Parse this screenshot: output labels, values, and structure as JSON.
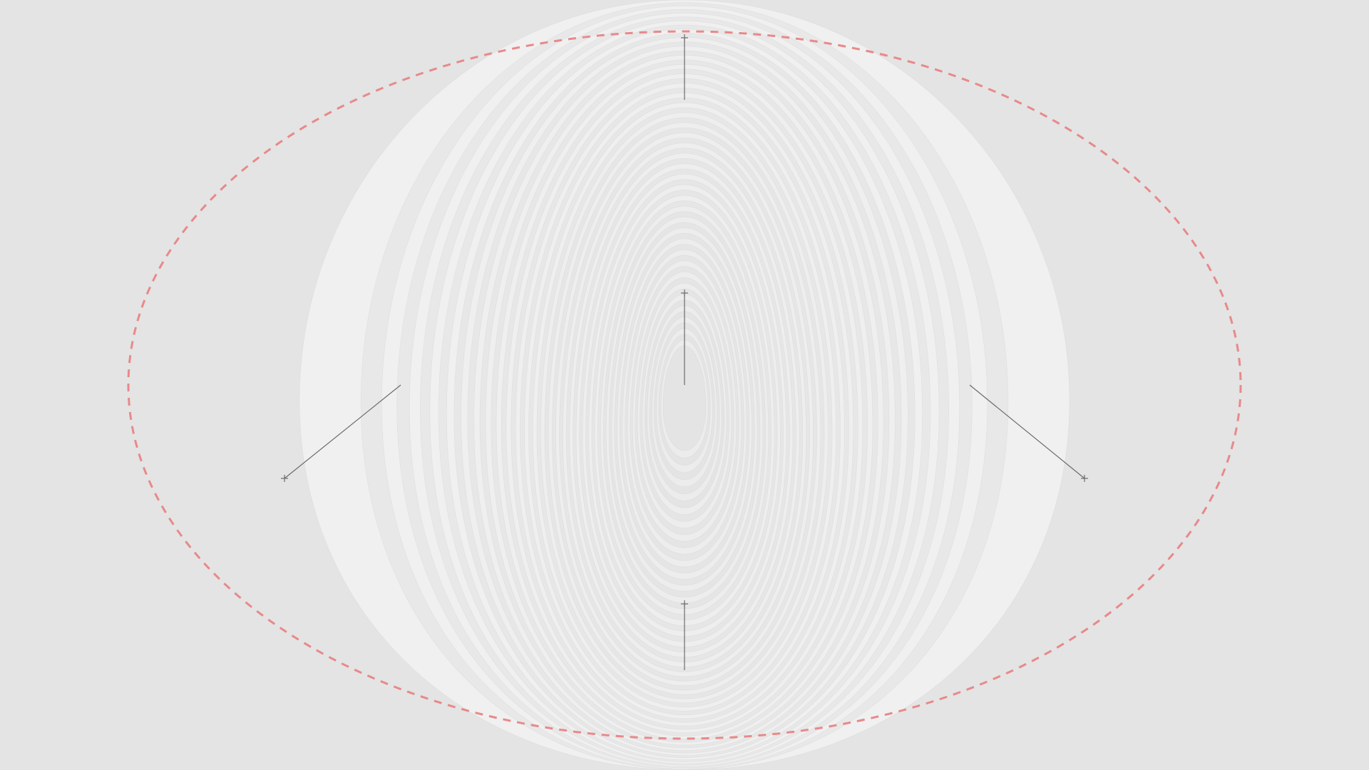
{
  "colors": {
    "background": "#e4e4e4",
    "ring_light": "#f0f0f0",
    "ring_dark": "#e2e2e2",
    "guide_ellipse": "#e8898a",
    "handle_line": "#6b6b6b"
  },
  "icons": {
    "handle_marker": "crosshair-plus-icon"
  }
}
